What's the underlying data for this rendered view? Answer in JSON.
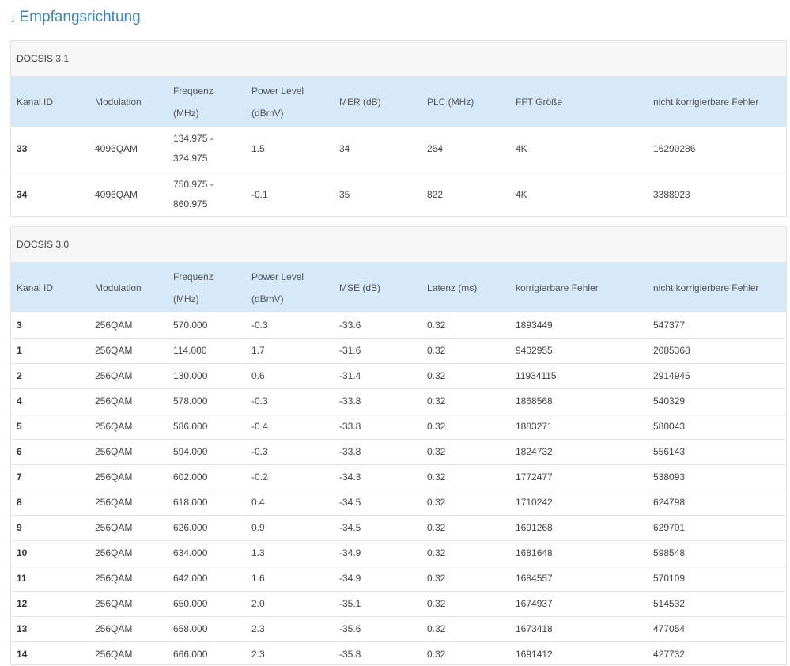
{
  "section": {
    "arrow": "↓",
    "title": "Empfangsrichtung"
  },
  "docsis31": {
    "title": "DOCSIS 3.1",
    "headers": [
      "Kanal ID",
      "Modulation",
      "Frequenz (MHz)",
      "Power Level (dBmV)",
      "MER (dB)",
      "PLC (MHz)",
      "FFT Größe",
      "nicht korrigierbare Fehler"
    ],
    "rows": [
      [
        "33",
        "4096QAM",
        "134.975 - 324.975",
        "1.5",
        "34",
        "264",
        "4K",
        "16290286"
      ],
      [
        "34",
        "4096QAM",
        "750.975 - 860.975",
        "-0.1",
        "35",
        "822",
        "4K",
        "3388923"
      ]
    ]
  },
  "docsis30": {
    "title": "DOCSIS 3.0",
    "headers": [
      "Kanal ID",
      "Modulation",
      "Frequenz (MHz)",
      "Power Level (dBmV)",
      "MSE (dB)",
      "Latenz (ms)",
      "korrigierbare Fehler",
      "nicht korrigierbare Fehler"
    ],
    "rows": [
      [
        "3",
        "256QAM",
        "570.000",
        "-0.3",
        "-33.6",
        "0.32",
        "1893449",
        "547377"
      ],
      [
        "1",
        "256QAM",
        "114.000",
        "1.7",
        "-31.6",
        "0.32",
        "9402955",
        "2085368"
      ],
      [
        "2",
        "256QAM",
        "130.000",
        "0.6",
        "-31.4",
        "0.32",
        "11934115",
        "2914945"
      ],
      [
        "4",
        "256QAM",
        "578.000",
        "-0.3",
        "-33.8",
        "0.32",
        "1868568",
        "540329"
      ],
      [
        "5",
        "256QAM",
        "586.000",
        "-0.4",
        "-33.8",
        "0.32",
        "1883271",
        "580043"
      ],
      [
        "6",
        "256QAM",
        "594.000",
        "-0.3",
        "-33.8",
        "0.32",
        "1824732",
        "556143"
      ],
      [
        "7",
        "256QAM",
        "602.000",
        "-0.2",
        "-34.3",
        "0.32",
        "1772477",
        "538093"
      ],
      [
        "8",
        "256QAM",
        "618.000",
        "0.4",
        "-34.5",
        "0.32",
        "1710242",
        "624798"
      ],
      [
        "9",
        "256QAM",
        "626.000",
        "0.9",
        "-34.5",
        "0.32",
        "1691268",
        "629701"
      ],
      [
        "10",
        "256QAM",
        "634.000",
        "1.3",
        "-34.9",
        "0.32",
        "1681648",
        "598548"
      ],
      [
        "11",
        "256QAM",
        "642.000",
        "1.6",
        "-34.9",
        "0.32",
        "1684557",
        "570109"
      ],
      [
        "12",
        "256QAM",
        "650.000",
        "2.0",
        "-35.1",
        "0.32",
        "1674937",
        "514532"
      ],
      [
        "13",
        "256QAM",
        "658.000",
        "2.3",
        "-35.6",
        "0.32",
        "1673418",
        "477054"
      ],
      [
        "14",
        "256QAM",
        "666.000",
        "2.3",
        "-35.8",
        "0.32",
        "1691412",
        "427732"
      ]
    ]
  },
  "colors": {
    "accent": "#3a86c8",
    "header_bg": "#d6e9f8",
    "panel_header_bg": "#f6f6f6"
  },
  "icons": {
    "section_arrow": "arrow-down-icon"
  }
}
